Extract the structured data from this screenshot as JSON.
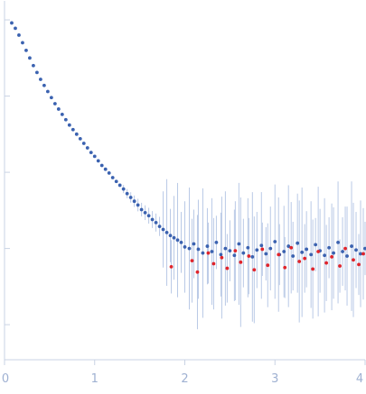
{
  "chart_data": {
    "type": "scatter",
    "title": "",
    "xlabel": "",
    "ylabel": "",
    "xlim": [
      0,
      4
    ],
    "x_ticks": [
      "0",
      "1",
      "2",
      "3",
      "4"
    ],
    "y_ticks": [],
    "y_scale": "log",
    "grid": false,
    "legend": "none",
    "colors": {
      "positive": "#3b62b0",
      "negative": "#e0242b",
      "errorbar": "#b9c9e6",
      "axis": "#c9d3e4",
      "tick_label": "#9fb1d2"
    },
    "series": [
      {
        "values_kind": "log-intensity",
        "sign": "positive",
        "x": [
          0.08,
          0.12,
          0.16,
          0.2,
          0.24,
          0.28,
          0.32,
          0.36,
          0.4,
          0.44,
          0.48,
          0.52,
          0.56,
          0.6,
          0.64,
          0.68,
          0.72,
          0.76,
          0.8,
          0.84,
          0.88,
          0.92,
          0.96,
          1.0,
          1.04,
          1.08,
          1.12,
          1.16,
          1.2,
          1.24,
          1.28,
          1.32,
          1.36,
          1.4,
          1.44,
          1.48,
          1.52,
          1.56,
          1.6,
          1.64,
          1.68,
          1.72,
          1.76,
          1.8,
          1.84,
          1.88,
          1.92,
          1.96,
          2.0,
          2.05,
          2.1,
          2.15,
          2.2,
          2.25,
          2.3,
          2.35,
          2.4,
          2.45,
          2.5,
          2.55,
          2.6,
          2.65,
          2.7,
          2.75,
          2.8,
          2.85,
          2.9,
          2.95,
          3.0,
          3.05,
          3.1,
          3.15,
          3.2,
          3.25,
          3.3,
          3.35,
          3.4,
          3.45,
          3.5,
          3.55,
          3.6,
          3.65,
          3.7,
          3.75,
          3.8,
          3.85,
          3.9,
          3.95,
          4.0
        ],
        "y": [
          4.92,
          4.85,
          4.76,
          4.66,
          4.56,
          4.46,
          4.36,
          4.27,
          4.18,
          4.1,
          4.02,
          3.94,
          3.86,
          3.79,
          3.72,
          3.65,
          3.58,
          3.52,
          3.46,
          3.4,
          3.34,
          3.28,
          3.22,
          3.17,
          3.11,
          3.05,
          3.0,
          2.95,
          2.89,
          2.84,
          2.79,
          2.74,
          2.68,
          2.63,
          2.58,
          2.53,
          2.47,
          2.43,
          2.39,
          2.34,
          2.3,
          2.25,
          2.21,
          2.17,
          2.13,
          2.1,
          2.07,
          2.04,
          1.98,
          1.96,
          2.02,
          1.95,
          1.9,
          1.99,
          1.92,
          2.04,
          1.88,
          1.96,
          1.93,
          1.87,
          2.02,
          1.9,
          1.97,
          1.85,
          1.94,
          2.0,
          1.89,
          1.96,
          2.05,
          1.88,
          1.92,
          1.99,
          1.86,
          2.03,
          1.91,
          1.95,
          1.88,
          2.01,
          1.93,
          1.87,
          1.97,
          1.9,
          2.04,
          1.92,
          1.86,
          1.99,
          1.94,
          1.89,
          1.96
        ]
      },
      {
        "values_kind": "log-|intensity|",
        "sign": "negative",
        "x": [
          1.85,
          2.08,
          2.14,
          2.26,
          2.32,
          2.41,
          2.47,
          2.56,
          2.62,
          2.71,
          2.77,
          2.86,
          2.92,
          3.04,
          3.11,
          3.18,
          3.27,
          3.33,
          3.42,
          3.48,
          3.57,
          3.63,
          3.72,
          3.78,
          3.87,
          3.93,
          3.98
        ],
        "y": [
          1.72,
          1.8,
          1.65,
          1.9,
          1.76,
          1.84,
          1.7,
          1.93,
          1.78,
          1.86,
          1.68,
          1.95,
          1.74,
          1.88,
          1.71,
          1.97,
          1.79,
          1.83,
          1.69,
          1.92,
          1.77,
          1.85,
          1.73,
          1.96,
          1.81,
          1.75,
          1.89
        ]
      }
    ]
  }
}
